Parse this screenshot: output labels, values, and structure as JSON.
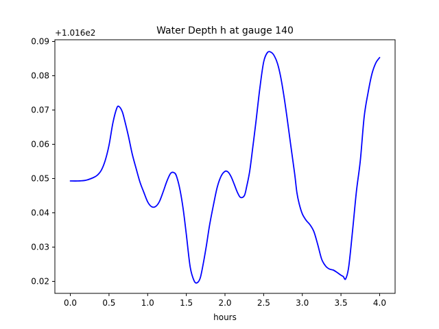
{
  "chart_data": {
    "type": "line",
    "title": "Water Depth h at gauge 140",
    "xlabel": "hours",
    "ylabel": "",
    "y_offset_label": "+1.016e2",
    "y_offset": 101.6,
    "xlim": [
      -0.2,
      4.2
    ],
    "ylim": [
      0.0165,
      0.0905
    ],
    "x_ticks": [
      0.0,
      0.5,
      1.0,
      1.5,
      2.0,
      2.5,
      3.0,
      3.5,
      4.0
    ],
    "x_tick_labels": [
      "0.0",
      "0.5",
      "1.0",
      "1.5",
      "2.0",
      "2.5",
      "3.0",
      "3.5",
      "4.0"
    ],
    "y_ticks": [
      0.02,
      0.03,
      0.04,
      0.05,
      0.06,
      0.07,
      0.08,
      0.09
    ],
    "y_tick_labels": [
      "0.02",
      "0.03",
      "0.04",
      "0.05",
      "0.06",
      "0.07",
      "0.08",
      "0.09"
    ],
    "grid": false,
    "series": [
      {
        "color": "#0000ff",
        "x": [
          0.0,
          0.1,
          0.2,
          0.3,
          0.35,
          0.4,
          0.45,
          0.5,
          0.55,
          0.6,
          0.63,
          0.67,
          0.7,
          0.75,
          0.8,
          0.85,
          0.9,
          0.95,
          1.0,
          1.05,
          1.1,
          1.15,
          1.2,
          1.25,
          1.3,
          1.35,
          1.38,
          1.42,
          1.46,
          1.5,
          1.55,
          1.6,
          1.64,
          1.68,
          1.72,
          1.76,
          1.8,
          1.85,
          1.9,
          1.95,
          2.0,
          2.04,
          2.08,
          2.12,
          2.16,
          2.2,
          2.25,
          2.28,
          2.32,
          2.36,
          2.4,
          2.45,
          2.5,
          2.55,
          2.6,
          2.64,
          2.68,
          2.72,
          2.76,
          2.8,
          2.85,
          2.9,
          2.93,
          2.96,
          3.0,
          3.05,
          3.1,
          3.15,
          3.2,
          3.25,
          3.3,
          3.35,
          3.4,
          3.45,
          3.5,
          3.53,
          3.56,
          3.6,
          3.65,
          3.7,
          3.75,
          3.8,
          3.85,
          3.9,
          3.95,
          4.0
        ],
        "values": [
          0.0493,
          0.0493,
          0.0495,
          0.0503,
          0.051,
          0.0524,
          0.0552,
          0.0597,
          0.0662,
          0.0705,
          0.071,
          0.0696,
          0.0672,
          0.0625,
          0.0572,
          0.053,
          0.049,
          0.046,
          0.0432,
          0.0418,
          0.0418,
          0.0432,
          0.0461,
          0.0493,
          0.0516,
          0.0516,
          0.0502,
          0.0465,
          0.041,
          0.0337,
          0.0242,
          0.0202,
          0.0196,
          0.021,
          0.0253,
          0.0305,
          0.0363,
          0.0422,
          0.0475,
          0.0507,
          0.0521,
          0.0519,
          0.0505,
          0.0483,
          0.046,
          0.0445,
          0.045,
          0.0476,
          0.0522,
          0.0592,
          0.0665,
          0.0762,
          0.084,
          0.0868,
          0.0868,
          0.0857,
          0.0835,
          0.0797,
          0.0744,
          0.0682,
          0.0598,
          0.0516,
          0.0459,
          0.0426,
          0.0397,
          0.0378,
          0.0365,
          0.0345,
          0.0307,
          0.0265,
          0.0245,
          0.0236,
          0.0233,
          0.0226,
          0.0218,
          0.0214,
          0.0207,
          0.0242,
          0.0348,
          0.0463,
          0.0552,
          0.068,
          0.075,
          0.0805,
          0.0837,
          0.0853
        ]
      }
    ]
  }
}
